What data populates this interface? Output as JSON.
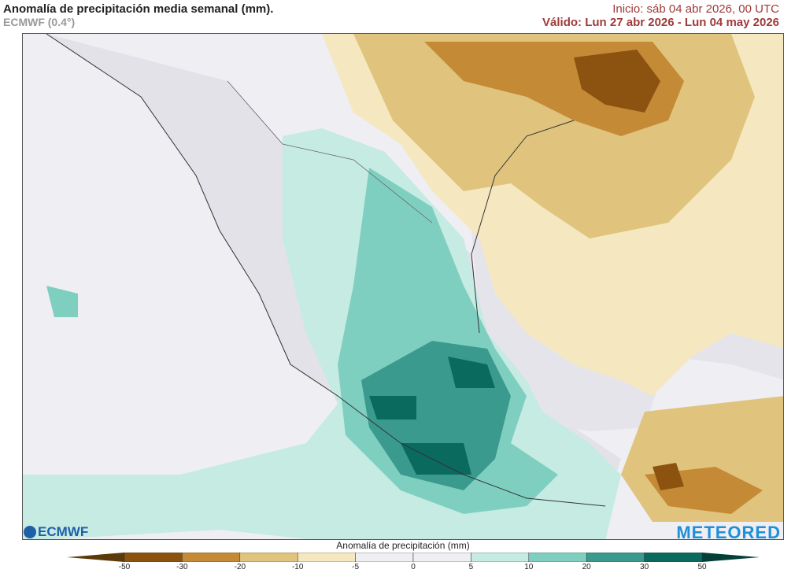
{
  "header": {
    "title": "Anomalía de precipitación media semanal (mm).",
    "model": "ECMWF (0.4°)",
    "init": "Inicio:  sáb 04 abr 2026, 00 UTC",
    "valid": "Válido: Lun 27 abr 2026 - Lun 04 may 2026"
  },
  "logos": {
    "left": "ECMWF",
    "right": "METEORED"
  },
  "colorbar": {
    "label": "Anomalía de precipitación (mm)",
    "ticks": [
      "-50",
      "-30",
      "-20",
      "-10",
      "-5",
      "0",
      "5",
      "10",
      "20",
      "30",
      "50"
    ],
    "colors": {
      "below_-50": "#5c3a0a",
      "-50_-30": "#8c5210",
      "-30_-20": "#c48a36",
      "-20_-10": "#e0c47e",
      "-10_-5": "#f5e8c0",
      "-5_0": "#eeeef3",
      "0_5": "#eeeef3",
      "5_10": "#c5ebe3",
      "10_20": "#7fcfc0",
      "20_30": "#3a9a8e",
      "30_50": "#0b6a5e",
      "above_50": "#063f38"
    }
  }
}
